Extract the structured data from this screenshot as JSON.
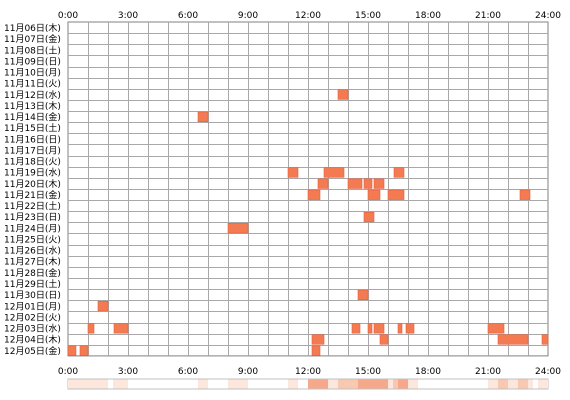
{
  "chart_data": {
    "type": "heatmap",
    "x_ticks": [
      "0:00",
      "3:00",
      "6:00",
      "9:00",
      "12:00",
      "15:00",
      "18:00",
      "21:00",
      "24:00"
    ],
    "xlim": [
      0,
      24
    ],
    "grid": true,
    "rows": [
      "11月06日(木)",
      "11月07日(金)",
      "11月08日(土)",
      "11月09日(日)",
      "11月10日(月)",
      "11月11日(火)",
      "11月12日(水)",
      "11月13日(木)",
      "11月14日(金)",
      "11月15日(土)",
      "11月16日(日)",
      "11月17日(月)",
      "11月18日(火)",
      "11月19日(水)",
      "11月20日(木)",
      "11月21日(金)",
      "11月22日(土)",
      "11月23日(日)",
      "11月24日(月)",
      "11月25日(火)",
      "11月26日(水)",
      "11月27日(木)",
      "11月28日(金)",
      "11月29日(土)",
      "11月30日(日)",
      "12月01日(月)",
      "12月02日(火)",
      "12月03日(水)",
      "12月04日(木)",
      "12月05日(金)"
    ],
    "activity": [
      {
        "row": 6,
        "start": 13.5,
        "end": 14.0
      },
      {
        "row": 8,
        "start": 6.5,
        "end": 7.0
      },
      {
        "row": 13,
        "start": 11.0,
        "end": 11.5
      },
      {
        "row": 13,
        "start": 12.8,
        "end": 13.8
      },
      {
        "row": 13,
        "start": 16.3,
        "end": 16.8
      },
      {
        "row": 14,
        "start": 12.5,
        "end": 13.0
      },
      {
        "row": 14,
        "start": 14.0,
        "end": 14.7
      },
      {
        "row": 14,
        "start": 14.8,
        "end": 15.2
      },
      {
        "row": 14,
        "start": 15.3,
        "end": 15.8
      },
      {
        "row": 15,
        "start": 12.0,
        "end": 12.6
      },
      {
        "row": 15,
        "start": 15.0,
        "end": 15.6
      },
      {
        "row": 15,
        "start": 16.0,
        "end": 16.8
      },
      {
        "row": 15,
        "start": 22.6,
        "end": 23.1
      },
      {
        "row": 17,
        "start": 14.8,
        "end": 15.3
      },
      {
        "row": 18,
        "start": 8.0,
        "end": 9.0
      },
      {
        "row": 24,
        "start": 14.5,
        "end": 15.0
      },
      {
        "row": 25,
        "start": 1.5,
        "end": 2.0
      },
      {
        "row": 27,
        "start": 1.0,
        "end": 1.3
      },
      {
        "row": 27,
        "start": 2.3,
        "end": 3.0
      },
      {
        "row": 27,
        "start": 14.2,
        "end": 14.6
      },
      {
        "row": 27,
        "start": 15.0,
        "end": 15.2
      },
      {
        "row": 27,
        "start": 15.3,
        "end": 15.8
      },
      {
        "row": 27,
        "start": 16.5,
        "end": 16.7
      },
      {
        "row": 27,
        "start": 16.9,
        "end": 17.3
      },
      {
        "row": 27,
        "start": 21.0,
        "end": 21.8
      },
      {
        "row": 28,
        "start": 12.2,
        "end": 12.8
      },
      {
        "row": 28,
        "start": 15.6,
        "end": 16.0
      },
      {
        "row": 28,
        "start": 21.5,
        "end": 23.0
      },
      {
        "row": 28,
        "start": 23.7,
        "end": 24.0
      },
      {
        "row": 29,
        "start": 0.0,
        "end": 0.4
      },
      {
        "row": 29,
        "start": 0.6,
        "end": 1.0
      },
      {
        "row": 29,
        "start": 12.2,
        "end": 12.6
      }
    ],
    "colors": {
      "block": "#f47a52",
      "block_edge": "#e06040",
      "grid": "#a8a8a8",
      "summary_light": "#fde7dc",
      "summary_mid": "#f9c8b0",
      "summary_dark": "#f6a98a"
    }
  }
}
